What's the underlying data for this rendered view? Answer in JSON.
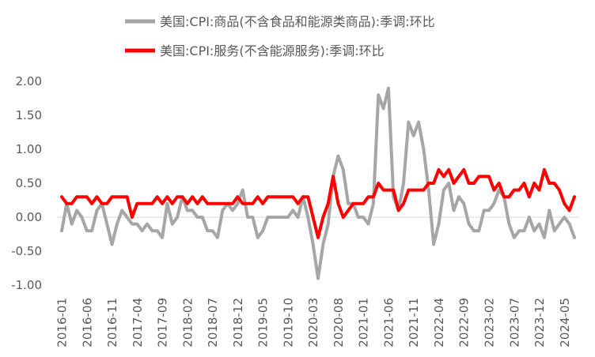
{
  "chart_data": {
    "type": "line",
    "legend_position": "top",
    "grid": false,
    "ylim": [
      -1.0,
      2.0
    ],
    "y_tick_labels": [
      "2.00",
      "1.50",
      "1.00",
      "0.50",
      "0.00",
      "-0.50",
      "-1.00"
    ],
    "x_tick_labels": [
      "2016-01",
      "2016-06",
      "2016-11",
      "2017-04",
      "2017-09",
      "2018-02",
      "2018-07",
      "2018-12",
      "2019-05",
      "2019-10",
      "2020-03",
      "2020-08",
      "2021-01",
      "2021-06",
      "2021-11",
      "2022-04",
      "2022-09",
      "2023-02",
      "2023-07",
      "2023-12",
      "2024-05"
    ],
    "x": [
      "2016-01",
      "2016-02",
      "2016-03",
      "2016-04",
      "2016-05",
      "2016-06",
      "2016-07",
      "2016-08",
      "2016-09",
      "2016-10",
      "2016-11",
      "2016-12",
      "2017-01",
      "2017-02",
      "2017-03",
      "2017-04",
      "2017-05",
      "2017-06",
      "2017-07",
      "2017-08",
      "2017-09",
      "2017-10",
      "2017-11",
      "2017-12",
      "2018-01",
      "2018-02",
      "2018-03",
      "2018-04",
      "2018-05",
      "2018-06",
      "2018-07",
      "2018-08",
      "2018-09",
      "2018-10",
      "2018-11",
      "2018-12",
      "2019-01",
      "2019-02",
      "2019-03",
      "2019-04",
      "2019-05",
      "2019-06",
      "2019-07",
      "2019-08",
      "2019-09",
      "2019-10",
      "2019-11",
      "2019-12",
      "2020-01",
      "2020-02",
      "2020-03",
      "2020-04",
      "2020-05",
      "2020-06",
      "2020-07",
      "2020-08",
      "2020-09",
      "2020-10",
      "2020-11",
      "2020-12",
      "2021-01",
      "2021-02",
      "2021-03",
      "2021-04",
      "2021-05",
      "2021-06",
      "2021-07",
      "2021-08",
      "2021-09",
      "2021-10",
      "2021-11",
      "2021-12",
      "2022-01",
      "2022-02",
      "2022-03",
      "2022-04",
      "2022-05",
      "2022-06",
      "2022-07",
      "2022-08",
      "2022-09",
      "2022-10",
      "2022-11",
      "2022-12",
      "2023-01",
      "2023-02",
      "2023-03",
      "2023-04",
      "2023-05",
      "2023-06",
      "2023-07",
      "2023-08",
      "2023-09",
      "2023-10",
      "2023-11",
      "2023-12",
      "2024-01",
      "2024-02",
      "2024-03",
      "2024-04",
      "2024-05",
      "2024-06",
      "2024-07"
    ],
    "series": [
      {
        "name": "美国:CPI:商品(不含食品和能源类商品):季调:环比",
        "color": "#A6A6A6",
        "values": [
          -0.2,
          0.2,
          -0.1,
          0.1,
          0.0,
          -0.2,
          -0.2,
          0.1,
          0.2,
          -0.1,
          -0.4,
          -0.1,
          0.1,
          0.0,
          -0.1,
          -0.1,
          -0.2,
          -0.1,
          -0.2,
          -0.2,
          -0.3,
          0.2,
          -0.1,
          0.0,
          0.3,
          0.1,
          0.1,
          0.0,
          0.0,
          -0.2,
          -0.2,
          -0.3,
          0.1,
          0.2,
          0.1,
          0.2,
          0.4,
          0.0,
          0.0,
          -0.3,
          -0.2,
          0.0,
          0.0,
          0.0,
          0.0,
          0.0,
          0.1,
          0.0,
          0.3,
          0.0,
          -0.4,
          -0.9,
          -0.4,
          -0.1,
          0.6,
          0.9,
          0.7,
          0.2,
          0.2,
          0.0,
          0.0,
          -0.1,
          0.2,
          1.8,
          1.6,
          1.9,
          0.3,
          0.1,
          0.5,
          1.4,
          1.2,
          1.4,
          1.0,
          0.4,
          -0.4,
          -0.1,
          0.4,
          0.5,
          0.1,
          0.3,
          0.2,
          -0.1,
          -0.2,
          -0.2,
          0.1,
          0.1,
          0.2,
          0.4,
          0.3,
          -0.1,
          -0.3,
          -0.2,
          -0.2,
          0.0,
          -0.2,
          -0.1,
          -0.3,
          0.1,
          -0.2,
          -0.1,
          0.0,
          -0.1,
          -0.3
        ]
      },
      {
        "name": "美国:CPI:服务(不含能源服务):季调:环比",
        "color": "#FF0000",
        "values": [
          0.3,
          0.2,
          0.2,
          0.3,
          0.3,
          0.3,
          0.2,
          0.3,
          0.2,
          0.2,
          0.3,
          0.3,
          0.3,
          0.3,
          0.0,
          0.2,
          0.2,
          0.2,
          0.2,
          0.3,
          0.2,
          0.3,
          0.2,
          0.3,
          0.3,
          0.2,
          0.3,
          0.2,
          0.3,
          0.2,
          0.2,
          0.2,
          0.2,
          0.2,
          0.2,
          0.3,
          0.2,
          0.2,
          0.2,
          0.3,
          0.2,
          0.3,
          0.3,
          0.3,
          0.3,
          0.3,
          0.3,
          0.2,
          0.3,
          0.3,
          0.0,
          -0.3,
          0.0,
          0.2,
          0.6,
          0.2,
          0.0,
          0.1,
          0.2,
          0.2,
          0.2,
          0.3,
          0.3,
          0.5,
          0.4,
          0.4,
          0.4,
          0.1,
          0.2,
          0.4,
          0.4,
          0.4,
          0.4,
          0.5,
          0.5,
          0.7,
          0.6,
          0.7,
          0.5,
          0.6,
          0.7,
          0.5,
          0.5,
          0.6,
          0.6,
          0.6,
          0.4,
          0.5,
          0.3,
          0.3,
          0.4,
          0.4,
          0.5,
          0.3,
          0.5,
          0.4,
          0.7,
          0.5,
          0.5,
          0.4,
          0.2,
          0.1,
          0.3
        ]
      }
    ]
  }
}
